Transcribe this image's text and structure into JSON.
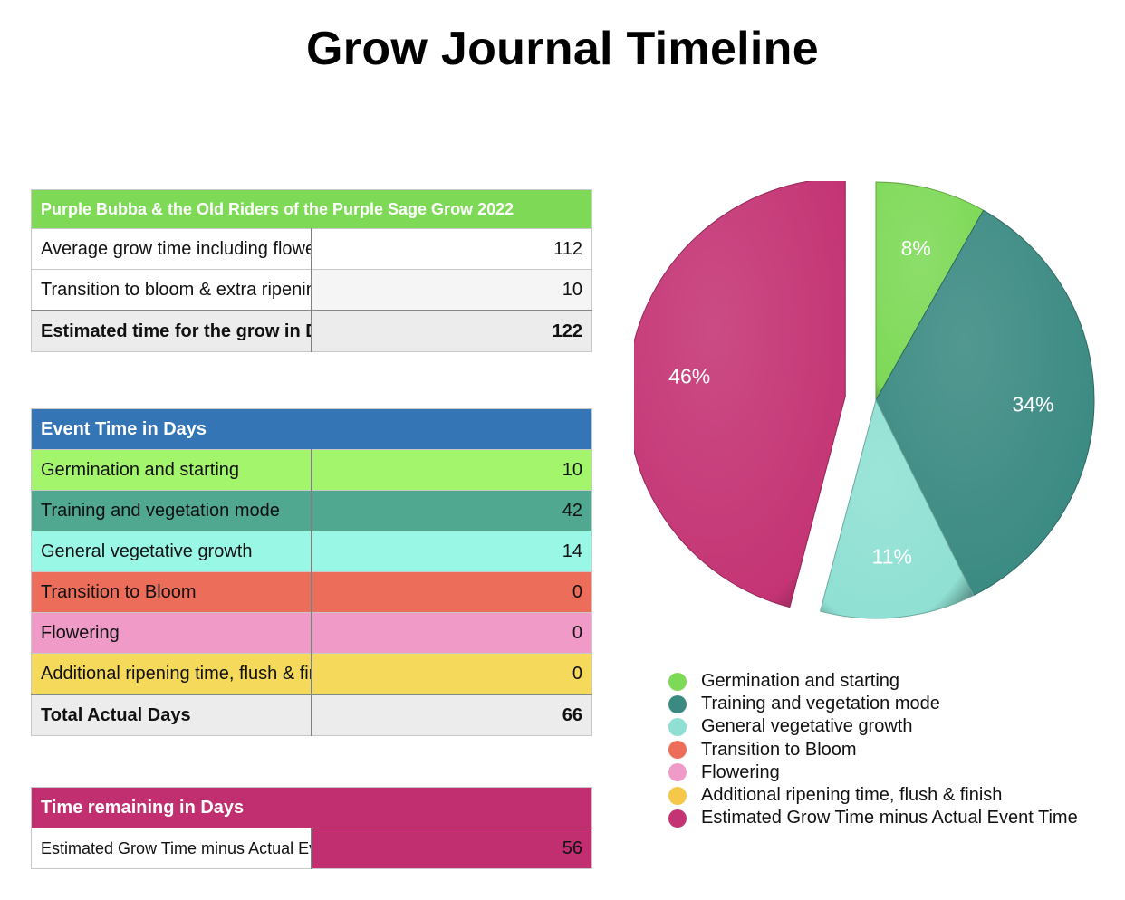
{
  "title": "Grow Journal Timeline",
  "summary_table": {
    "header": "Purple Bubba & the Old Riders of the Purple Sage Grow 2022",
    "header_color": "#7ed957",
    "rows": [
      {
        "label": "Average grow time including flowering",
        "value": "112"
      },
      {
        "label": "Transition to bloom & extra ripening",
        "value": "10"
      }
    ],
    "total": {
      "label": "Estimated time for the grow in Days",
      "value": "122"
    }
  },
  "event_table": {
    "header": "Event Time in Days",
    "header_color": "#3375b5",
    "rows": [
      {
        "label": "Germination and starting",
        "value": "10",
        "color": "#a3f56b"
      },
      {
        "label": "Training and vegetation mode",
        "value": "42",
        "color": "#4fa88f"
      },
      {
        "label": "General vegetative growth",
        "value": "14",
        "color": "#99f7e6"
      },
      {
        "label": "Transition to Bloom",
        "value": "0",
        "color": "#ec6e5a"
      },
      {
        "label": "Flowering",
        "value": "0",
        "color": "#f09bc7"
      },
      {
        "label": "Additional ripening time, flush & finish",
        "value": "0",
        "color": "#f5d95a"
      }
    ],
    "total": {
      "label": "Total Actual Days",
      "value": "66"
    }
  },
  "remaining_table": {
    "header": "Time remaining in Days",
    "header_color": "#c12f71",
    "row": {
      "label": "Estimated Grow Time minus Actual Event Time",
      "value": "56",
      "value_color": "#c12f71"
    }
  },
  "chart_data": {
    "type": "pie",
    "title": "",
    "categories": [
      "Germination and starting",
      "Training and vegetation mode",
      "General vegetative growth",
      "Transition to Bloom",
      "Flowering",
      "Additional ripening time, flush & finish",
      "Estimated Grow Time minus Actual Event Time"
    ],
    "values": [
      10,
      42,
      14,
      0,
      0,
      0,
      56
    ],
    "data_labels": [
      "8%",
      "34%",
      "11%",
      "",
      "",
      "",
      "46%"
    ],
    "colors": [
      "#7ed957",
      "#3a8a82",
      "#8fe0d3",
      "#ec6e5a",
      "#f09bc7",
      "#f5c84a",
      "#c43474"
    ],
    "exploded": [
      false,
      false,
      false,
      false,
      false,
      false,
      true
    ],
    "legend_position": "bottom"
  }
}
